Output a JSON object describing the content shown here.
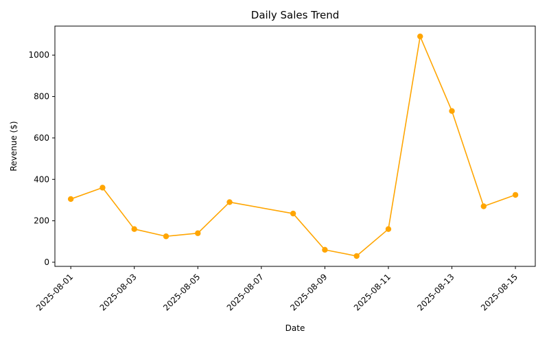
{
  "chart_data": {
    "type": "line",
    "title": "Daily Sales Trend",
    "xlabel": "Date",
    "ylabel": "Revenue ($)",
    "x_tick_labels": [
      "2025-08-01",
      "2025-08-03",
      "2025-08-05",
      "2025-08-07",
      "2025-08-09",
      "2025-08-11",
      "2025-08-13",
      "2025-08-15"
    ],
    "y_ticks": [
      0,
      200,
      400,
      600,
      800,
      1000
    ],
    "xlim": [
      "2025-07-31T12:00",
      "2025-08-15T15:00"
    ],
    "ylim": [
      -20,
      1140
    ],
    "grid": false,
    "legend": "none",
    "series": [
      {
        "color": "#ffa500",
        "marker": "circle",
        "x": [
          "2025-08-01",
          "2025-08-02",
          "2025-08-03",
          "2025-08-04",
          "2025-08-05",
          "2025-08-06",
          "2025-08-08",
          "2025-08-09",
          "2025-08-10",
          "2025-08-11",
          "2025-08-12",
          "2025-08-13",
          "2025-08-14",
          "2025-08-15"
        ],
        "y": [
          305,
          360,
          160,
          125,
          140,
          290,
          235,
          60,
          30,
          160,
          1090,
          730,
          270,
          325
        ]
      }
    ]
  }
}
